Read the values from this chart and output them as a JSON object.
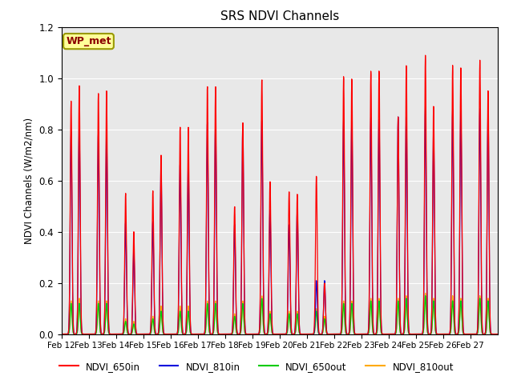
{
  "title": "SRS NDVI Channels",
  "ylabel": "NDVI Channels (W/m2/nm)",
  "xlabel": "",
  "ylim": [
    0.0,
    1.2
  ],
  "bg_color": "#e8e8e8",
  "legend_label": "WP_met",
  "line_colors": {
    "NDVI_650in": "#ff0000",
    "NDVI_810in": "#0000dd",
    "NDVI_650out": "#00cc00",
    "NDVI_810out": "#ffaa00"
  },
  "xtick_labels": [
    "Feb 12",
    "Feb 13",
    "Feb 14",
    "Feb 15",
    "Feb 16",
    "Feb 17",
    "Feb 18",
    "Feb 19",
    "Feb 20",
    "Feb 21",
    "Feb 22",
    "Feb 23",
    "Feb 24",
    "Feb 25",
    "Feb 26",
    "Feb 27"
  ],
  "peaks_650in_am": [
    0.91,
    0.94,
    0.55,
    0.56,
    0.81,
    0.97,
    0.5,
    1.0,
    0.56,
    0.62,
    1.01,
    1.03,
    0.85,
    1.09,
    1.05,
    1.07
  ],
  "peaks_650in_pm": [
    0.97,
    0.95,
    0.4,
    0.7,
    0.81,
    0.97,
    0.83,
    0.6,
    0.55,
    0.2,
    1.0,
    1.03,
    1.05,
    0.89,
    1.04,
    0.95
  ],
  "peaks_810in_am": [
    0.79,
    0.79,
    0.44,
    0.44,
    0.67,
    0.83,
    0.43,
    0.84,
    0.43,
    0.21,
    0.84,
    0.85,
    0.85,
    0.89,
    0.88,
    0.88
  ],
  "peaks_810in_pm": [
    0.8,
    0.79,
    0.33,
    0.67,
    0.67,
    0.83,
    0.82,
    0.49,
    0.49,
    0.21,
    0.84,
    0.84,
    0.85,
    0.8,
    0.87,
    0.87
  ],
  "peaks_650out_am": [
    0.12,
    0.12,
    0.05,
    0.06,
    0.09,
    0.12,
    0.07,
    0.14,
    0.08,
    0.09,
    0.12,
    0.13,
    0.13,
    0.15,
    0.13,
    0.14
  ],
  "peaks_650out_pm": [
    0.12,
    0.12,
    0.04,
    0.09,
    0.09,
    0.12,
    0.12,
    0.08,
    0.08,
    0.06,
    0.12,
    0.13,
    0.14,
    0.13,
    0.13,
    0.13
  ],
  "peaks_810out_am": [
    0.13,
    0.13,
    0.06,
    0.07,
    0.11,
    0.13,
    0.08,
    0.15,
    0.09,
    0.1,
    0.13,
    0.14,
    0.14,
    0.16,
    0.15,
    0.15
  ],
  "peaks_810out_pm": [
    0.14,
    0.13,
    0.05,
    0.11,
    0.11,
    0.13,
    0.13,
    0.09,
    0.09,
    0.07,
    0.13,
    0.14,
    0.15,
    0.14,
    0.14,
    0.14
  ]
}
